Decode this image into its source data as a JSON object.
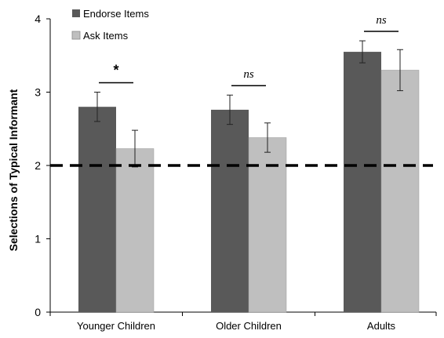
{
  "chart_data": {
    "type": "bar",
    "title": "",
    "xlabel": "",
    "ylabel": "Selections of Typical Informant",
    "ylim": [
      0,
      4
    ],
    "yticks": [
      "0",
      "1",
      "2",
      "3",
      "4"
    ],
    "categories": [
      "Younger Children",
      "Older Children",
      "Adults"
    ],
    "series": [
      {
        "name": "Endorse Items",
        "color": "#595959",
        "values": [
          2.8,
          2.76,
          3.55
        ],
        "error": [
          0.2,
          0.2,
          0.15
        ]
      },
      {
        "name": "Ask Items",
        "color": "#bfbfbf",
        "values": [
          2.23,
          2.38,
          3.3
        ],
        "error": [
          0.25,
          0.2,
          0.28
        ]
      }
    ],
    "reference_line": {
      "y": 2,
      "style": "dashed",
      "color": "#000000"
    },
    "significance": [
      "*",
      "ns",
      "ns"
    ],
    "legend": {
      "position": "top-left"
    },
    "grid": false
  }
}
